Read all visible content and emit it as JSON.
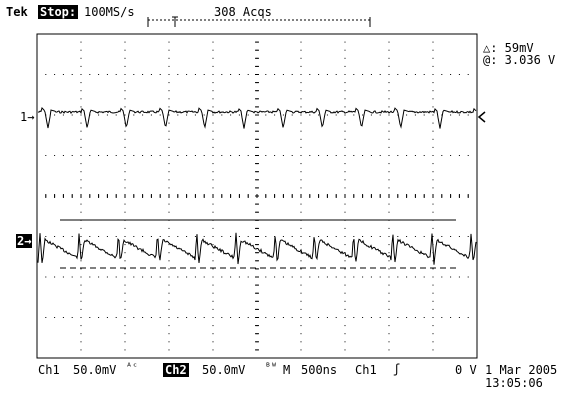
{
  "header": {
    "brand": "Tek",
    "run_state": "Stop:",
    "sample_rate": "100MS/s",
    "acqs": "308 Acqs"
  },
  "cursor_readout": {
    "delta": "△: 59mV",
    "at": "@: 3.036 V"
  },
  "channel_markers": {
    "ch1": "1→",
    "ch2": "2→"
  },
  "footer": {
    "ch1_label": "Ch1",
    "ch1_scale": "50.0mV",
    "ch1_coupling": "ᴬᶜ",
    "ch2_label": "Ch2",
    "ch2_scale": "50.0mV",
    "bw": "ᴮᵂ",
    "timebase_label": "M",
    "timebase": "500ns",
    "trigger_source": "Ch1",
    "trigger_slope": "ʃ",
    "trigger_level": "0 V",
    "date": "1 Mar 2005",
    "time": "13:05:06"
  },
  "colors": {
    "background": "#ffffff",
    "trace": "#000000",
    "grid": "#000000"
  }
}
